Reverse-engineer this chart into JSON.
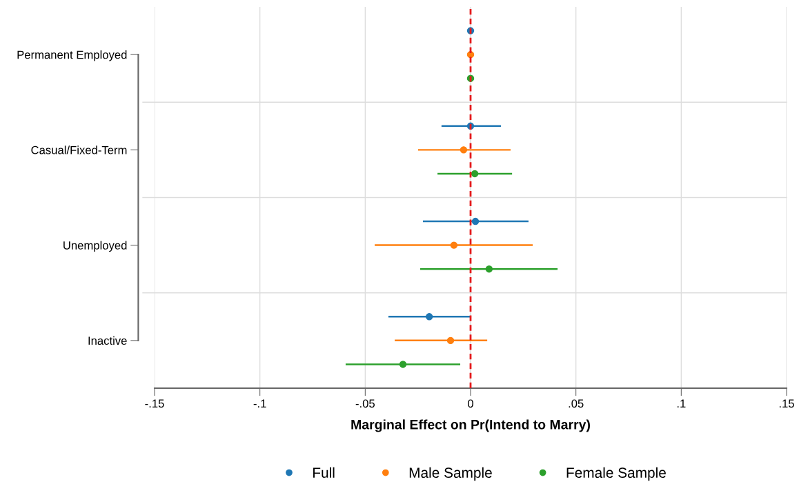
{
  "chart_data": {
    "type": "scatter",
    "orientation": "horizontal",
    "xlabel": "Marginal Effect on Pr(Intend to Marry)",
    "categories": [
      "Permanent Employed",
      "Casual/Fixed-Term",
      "Unemployed",
      "Inactive"
    ],
    "series": [
      {
        "name": "Full",
        "color": "#1f77b4",
        "values": [
          0,
          0,
          0.0023,
          -0.0196
        ],
        "errors": [
          null,
          [
            -0.0138,
            0.0144
          ],
          [
            -0.0226,
            0.0275
          ],
          [
            -0.039,
            0
          ]
        ]
      },
      {
        "name": "Male Sample",
        "color": "#ff7f0e",
        "values": [
          0,
          -0.0033,
          -0.0079,
          -0.0095
        ],
        "errors": [
          null,
          [
            -0.0249,
            0.019
          ],
          [
            -0.0455,
            0.0295
          ],
          [
            -0.036,
            0.0079
          ]
        ]
      },
      {
        "name": "Female Sample",
        "color": "#2ca02c",
        "values": [
          0,
          0.002,
          0.0088,
          -0.0321
        ],
        "errors": [
          null,
          [
            -0.0157,
            0.0197
          ],
          [
            -0.0239,
            0.0413
          ],
          [
            -0.0593,
            -0.0049
          ]
        ]
      }
    ],
    "xlim": [
      -0.15,
      0.15
    ],
    "xticks": [
      {
        "value": -0.15,
        "label": "-.15"
      },
      {
        "value": -0.1,
        "label": "-.1"
      },
      {
        "value": -0.05,
        "label": "-.05"
      },
      0,
      {
        "value": 0.05,
        "label": ".05"
      },
      {
        "value": 0.1,
        "label": ".1"
      },
      {
        "value": 0.15,
        "label": ".15"
      }
    ],
    "ref_lines": [
      {
        "axis": "x",
        "value": 0,
        "color": "#e41a1c",
        "line_style": "dashed"
      }
    ],
    "grid": true,
    "legend": "bottom",
    "marker": "circle"
  }
}
